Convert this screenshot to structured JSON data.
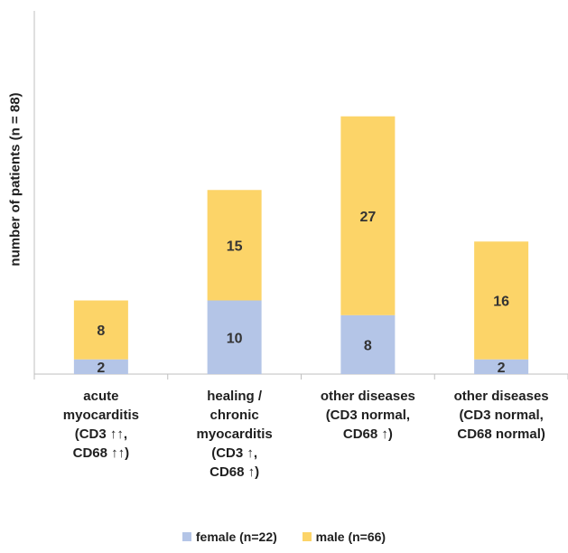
{
  "chart_data": {
    "type": "bar",
    "stacked": true,
    "categories": [
      "acute\nmyocarditis\n(CD3 ↑↑,\nCD68 ↑↑)",
      "healing /\nchronic\nmyocarditis\n(CD3 ↑,\nCD68 ↑)",
      "other diseases\n(CD3 normal,\nCD68 ↑)",
      "other diseases\n(CD3 normal,\nCD68 normal)"
    ],
    "series": [
      {
        "name": "female (n=22)",
        "values": [
          2,
          10,
          8,
          2
        ],
        "color": "#b4c5e7"
      },
      {
        "name": "male (n=66)",
        "values": [
          8,
          15,
          27,
          16
        ],
        "color": "#fcd468"
      }
    ],
    "ylabel": "number of patients (n = 88)",
    "xlabel": "",
    "ylim": [
      0,
      37
    ],
    "grid": false,
    "legend_position": "bottom"
  }
}
